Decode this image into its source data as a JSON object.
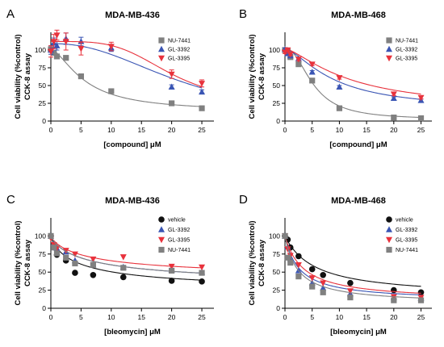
{
  "chart_data": [
    {
      "type": "scatter",
      "panel": "A",
      "title": "MDA-MB-436",
      "ylabel_lines": [
        "Cell viability (%control)",
        "CCK-8 assay"
      ],
      "xlabel": "[compound] μM",
      "xlim": [
        0,
        27
      ],
      "ylim": [
        0,
        125
      ],
      "xticks": [
        0,
        5,
        10,
        15,
        20,
        25
      ],
      "yticks": [
        0,
        25,
        50,
        75,
        100
      ],
      "legend_position": "top-right",
      "series": [
        {
          "name": "NU-7441",
          "color": "#808080",
          "marker": "square",
          "x": [
            0,
            0.5,
            1,
            2.5,
            5,
            10,
            20,
            25
          ],
          "y": [
            101,
            96,
            91,
            89,
            63,
            42,
            25,
            18
          ],
          "err": [
            0,
            0,
            0,
            0,
            0,
            0,
            0,
            0
          ],
          "curve": {
            "top": 101,
            "bottom": 13,
            "ic50": 5.6,
            "hill": 1.6
          }
        },
        {
          "name": "GL-3392",
          "color": "#3a55b4",
          "marker": "triangle-up",
          "x": [
            0,
            0.5,
            1,
            2.5,
            5,
            10,
            20,
            25
          ],
          "y": [
            100,
            110,
            106,
            116,
            112,
            103,
            48,
            41
          ],
          "err": [
            6,
            7,
            6,
            8,
            6,
            5,
            3,
            3
          ],
          "curve": {
            "top": 109,
            "bottom": 0,
            "ic50": 22,
            "hill": 2.3
          }
        },
        {
          "name": "GL-3395",
          "color": "#e8323c",
          "marker": "triangle-down",
          "x": [
            0,
            0.5,
            1,
            2.5,
            5,
            10,
            20,
            25
          ],
          "y": [
            98,
            112,
            121,
            112,
            102,
            105,
            66,
            53
          ],
          "err": [
            8,
            10,
            7,
            12,
            9,
            6,
            6,
            5
          ],
          "curve": {
            "top": 112,
            "bottom": 25,
            "ic50": 19.5,
            "hill": 4
          }
        }
      ]
    },
    {
      "type": "scatter",
      "panel": "B",
      "title": "MDA-MB-468",
      "ylabel_lines": [
        "Cell viability (%control)",
        "CCK-8 assay"
      ],
      "xlabel": "[compound] μM",
      "xlim": [
        0,
        27
      ],
      "ylim": [
        0,
        125
      ],
      "xticks": [
        0,
        5,
        10,
        15,
        20,
        25
      ],
      "yticks": [
        0,
        25,
        50,
        75,
        100
      ],
      "legend_position": "top-right",
      "series": [
        {
          "name": "NU-7441",
          "color": "#808080",
          "marker": "square",
          "x": [
            0,
            0.5,
            1,
            2.5,
            5,
            10,
            20,
            25
          ],
          "y": [
            100,
            98,
            90,
            80,
            57,
            18,
            5,
            4
          ],
          "err": [
            0,
            0,
            0,
            0,
            0,
            0,
            0,
            0
          ],
          "curve": {
            "top": 102,
            "bottom": 2,
            "ic50": 5.2,
            "hill": 2.2
          }
        },
        {
          "name": "GL-3392",
          "color": "#3a55b4",
          "marker": "triangle-up",
          "x": [
            0,
            0.5,
            1,
            2.5,
            5,
            10,
            20,
            25
          ],
          "y": [
            101,
            95,
            92,
            88,
            69,
            48,
            32,
            29
          ],
          "err": [
            2,
            2,
            2,
            2,
            2,
            2,
            2,
            2
          ],
          "curve": {
            "top": 102,
            "bottom": 15,
            "ic50": 9,
            "hill": 1.5
          }
        },
        {
          "name": "GL-3395",
          "color": "#e8323c",
          "marker": "triangle-down",
          "x": [
            0,
            0.5,
            1,
            2.5,
            5,
            10,
            20,
            25
          ],
          "y": [
            97,
            100,
            94,
            87,
            80,
            61,
            38,
            33
          ],
          "err": [
            2,
            2,
            2,
            2,
            2,
            2,
            2,
            2
          ],
          "curve": {
            "top": 102,
            "bottom": 15,
            "ic50": 12,
            "hill": 1.4
          }
        }
      ]
    },
    {
      "type": "scatter",
      "panel": "C",
      "title": "MDA-MB-436",
      "ylabel_lines": [
        "Cell viability (%control)",
        "CCK-8 assay"
      ],
      "xlabel": "[bleomycin] μM",
      "xlim": [
        0,
        27
      ],
      "ylim": [
        0,
        125
      ],
      "xticks": [
        0,
        5,
        10,
        15,
        20,
        25
      ],
      "yticks": [
        0,
        25,
        50,
        75,
        100
      ],
      "legend_position": "top-right",
      "series": [
        {
          "name": "vehicle",
          "color": "#111111",
          "marker": "circle",
          "x": [
            0,
            0.5,
            1,
            2.5,
            4,
            7,
            12,
            20,
            25
          ],
          "y": [
            100,
            86,
            74,
            66,
            49,
            46,
            43,
            38,
            37
          ],
          "err": [
            0,
            0,
            0,
            0,
            0,
            0,
            0,
            0,
            0
          ],
          "curve": {
            "top": 100,
            "bottom": 22,
            "ic50": 5,
            "hill": 0.8
          }
        },
        {
          "name": "GL-3392",
          "color": "#3a55b4",
          "marker": "triangle-up",
          "x": [
            0,
            0.5,
            1,
            2.5,
            4,
            7,
            12,
            20,
            25
          ],
          "y": [
            100,
            90,
            83,
            78,
            66,
            60,
            57,
            53,
            50
          ],
          "err": [
            0,
            0,
            0,
            0,
            0,
            0,
            0,
            0,
            0
          ],
          "curve": {
            "top": 100,
            "bottom": 30,
            "ic50": 7,
            "hill": 0.8
          }
        },
        {
          "name": "GL-3395",
          "color": "#e8323c",
          "marker": "triangle-down",
          "x": [
            0,
            0.5,
            1,
            2.5,
            4,
            7,
            12,
            20,
            25
          ],
          "y": [
            97,
            88,
            83,
            80,
            75,
            68,
            71,
            58,
            57
          ],
          "err": [
            0,
            0,
            0,
            0,
            0,
            0,
            0,
            0,
            0
          ],
          "curve": {
            "top": 100,
            "bottom": 40,
            "ic50": 7,
            "hill": 0.8
          }
        },
        {
          "name": "NU-7441",
          "color": "#808080",
          "marker": "square",
          "x": [
            0,
            0.5,
            1,
            2.5,
            4,
            7,
            12,
            20,
            25
          ],
          "y": [
            100,
            84,
            76,
            70,
            62,
            60,
            56,
            52,
            49
          ],
          "err": [
            0,
            0,
            0,
            0,
            0,
            0,
            0,
            0,
            0
          ],
          "curve": {
            "top": 100,
            "bottom": 30,
            "ic50": 7,
            "hill": 0.8
          }
        }
      ]
    },
    {
      "type": "scatter",
      "panel": "D",
      "title": "MDA-MB-468",
      "ylabel_lines": [
        "Cell viability (%control)",
        "CCK-8 assay"
      ],
      "xlabel": "[bleomycin] μM",
      "xlim": [
        0,
        27
      ],
      "ylim": [
        0,
        125
      ],
      "xticks": [
        0,
        5,
        10,
        15,
        20,
        25
      ],
      "yticks": [
        0,
        25,
        50,
        75,
        100
      ],
      "legend_position": "top-right",
      "series": [
        {
          "name": "vehicle",
          "color": "#111111",
          "marker": "circle",
          "x": [
            0,
            0.5,
            1,
            2.5,
            5,
            7,
            12,
            20,
            25
          ],
          "y": [
            100,
            95,
            84,
            72,
            54,
            46,
            35,
            25,
            22
          ],
          "err": [
            0,
            0,
            0,
            0,
            0,
            0,
            0,
            0,
            0
          ],
          "curve": {
            "top": 100,
            "bottom": 15,
            "ic50": 5.5,
            "hill": 1.0
          }
        },
        {
          "name": "GL-3392",
          "color": "#3a55b4",
          "marker": "triangle-up",
          "x": [
            0,
            0.5,
            1,
            2.5,
            5,
            7,
            12,
            20,
            25
          ],
          "y": [
            100,
            85,
            68,
            52,
            35,
            28,
            20,
            15,
            14
          ],
          "err": [
            0,
            0,
            0,
            0,
            0,
            0,
            0,
            0,
            0
          ],
          "curve": {
            "top": 100,
            "bottom": 10,
            "ic50": 2.6,
            "hill": 1.0
          }
        },
        {
          "name": "GL-3395",
          "color": "#e8323c",
          "marker": "triangle-down",
          "x": [
            0,
            0.5,
            1,
            2.5,
            5,
            7,
            12,
            20,
            25
          ],
          "y": [
            100,
            82,
            73,
            60,
            42,
            35,
            24,
            16,
            15
          ],
          "err": [
            0,
            0,
            0,
            0,
            0,
            0,
            0,
            0,
            0
          ],
          "curve": {
            "top": 100,
            "bottom": 10,
            "ic50": 3.4,
            "hill": 1.0
          }
        },
        {
          "name": "NU-7441",
          "color": "#808080",
          "marker": "square",
          "x": [
            0,
            0.5,
            1,
            2.5,
            5,
            7,
            12,
            20,
            25
          ],
          "y": [
            100,
            70,
            63,
            44,
            30,
            22,
            15,
            11,
            11
          ],
          "err": [
            0,
            0,
            0,
            0,
            0,
            0,
            0,
            0,
            0
          ],
          "curve": {
            "top": 100,
            "bottom": 6,
            "ic50": 2.4,
            "hill": 1.0
          }
        }
      ]
    }
  ]
}
